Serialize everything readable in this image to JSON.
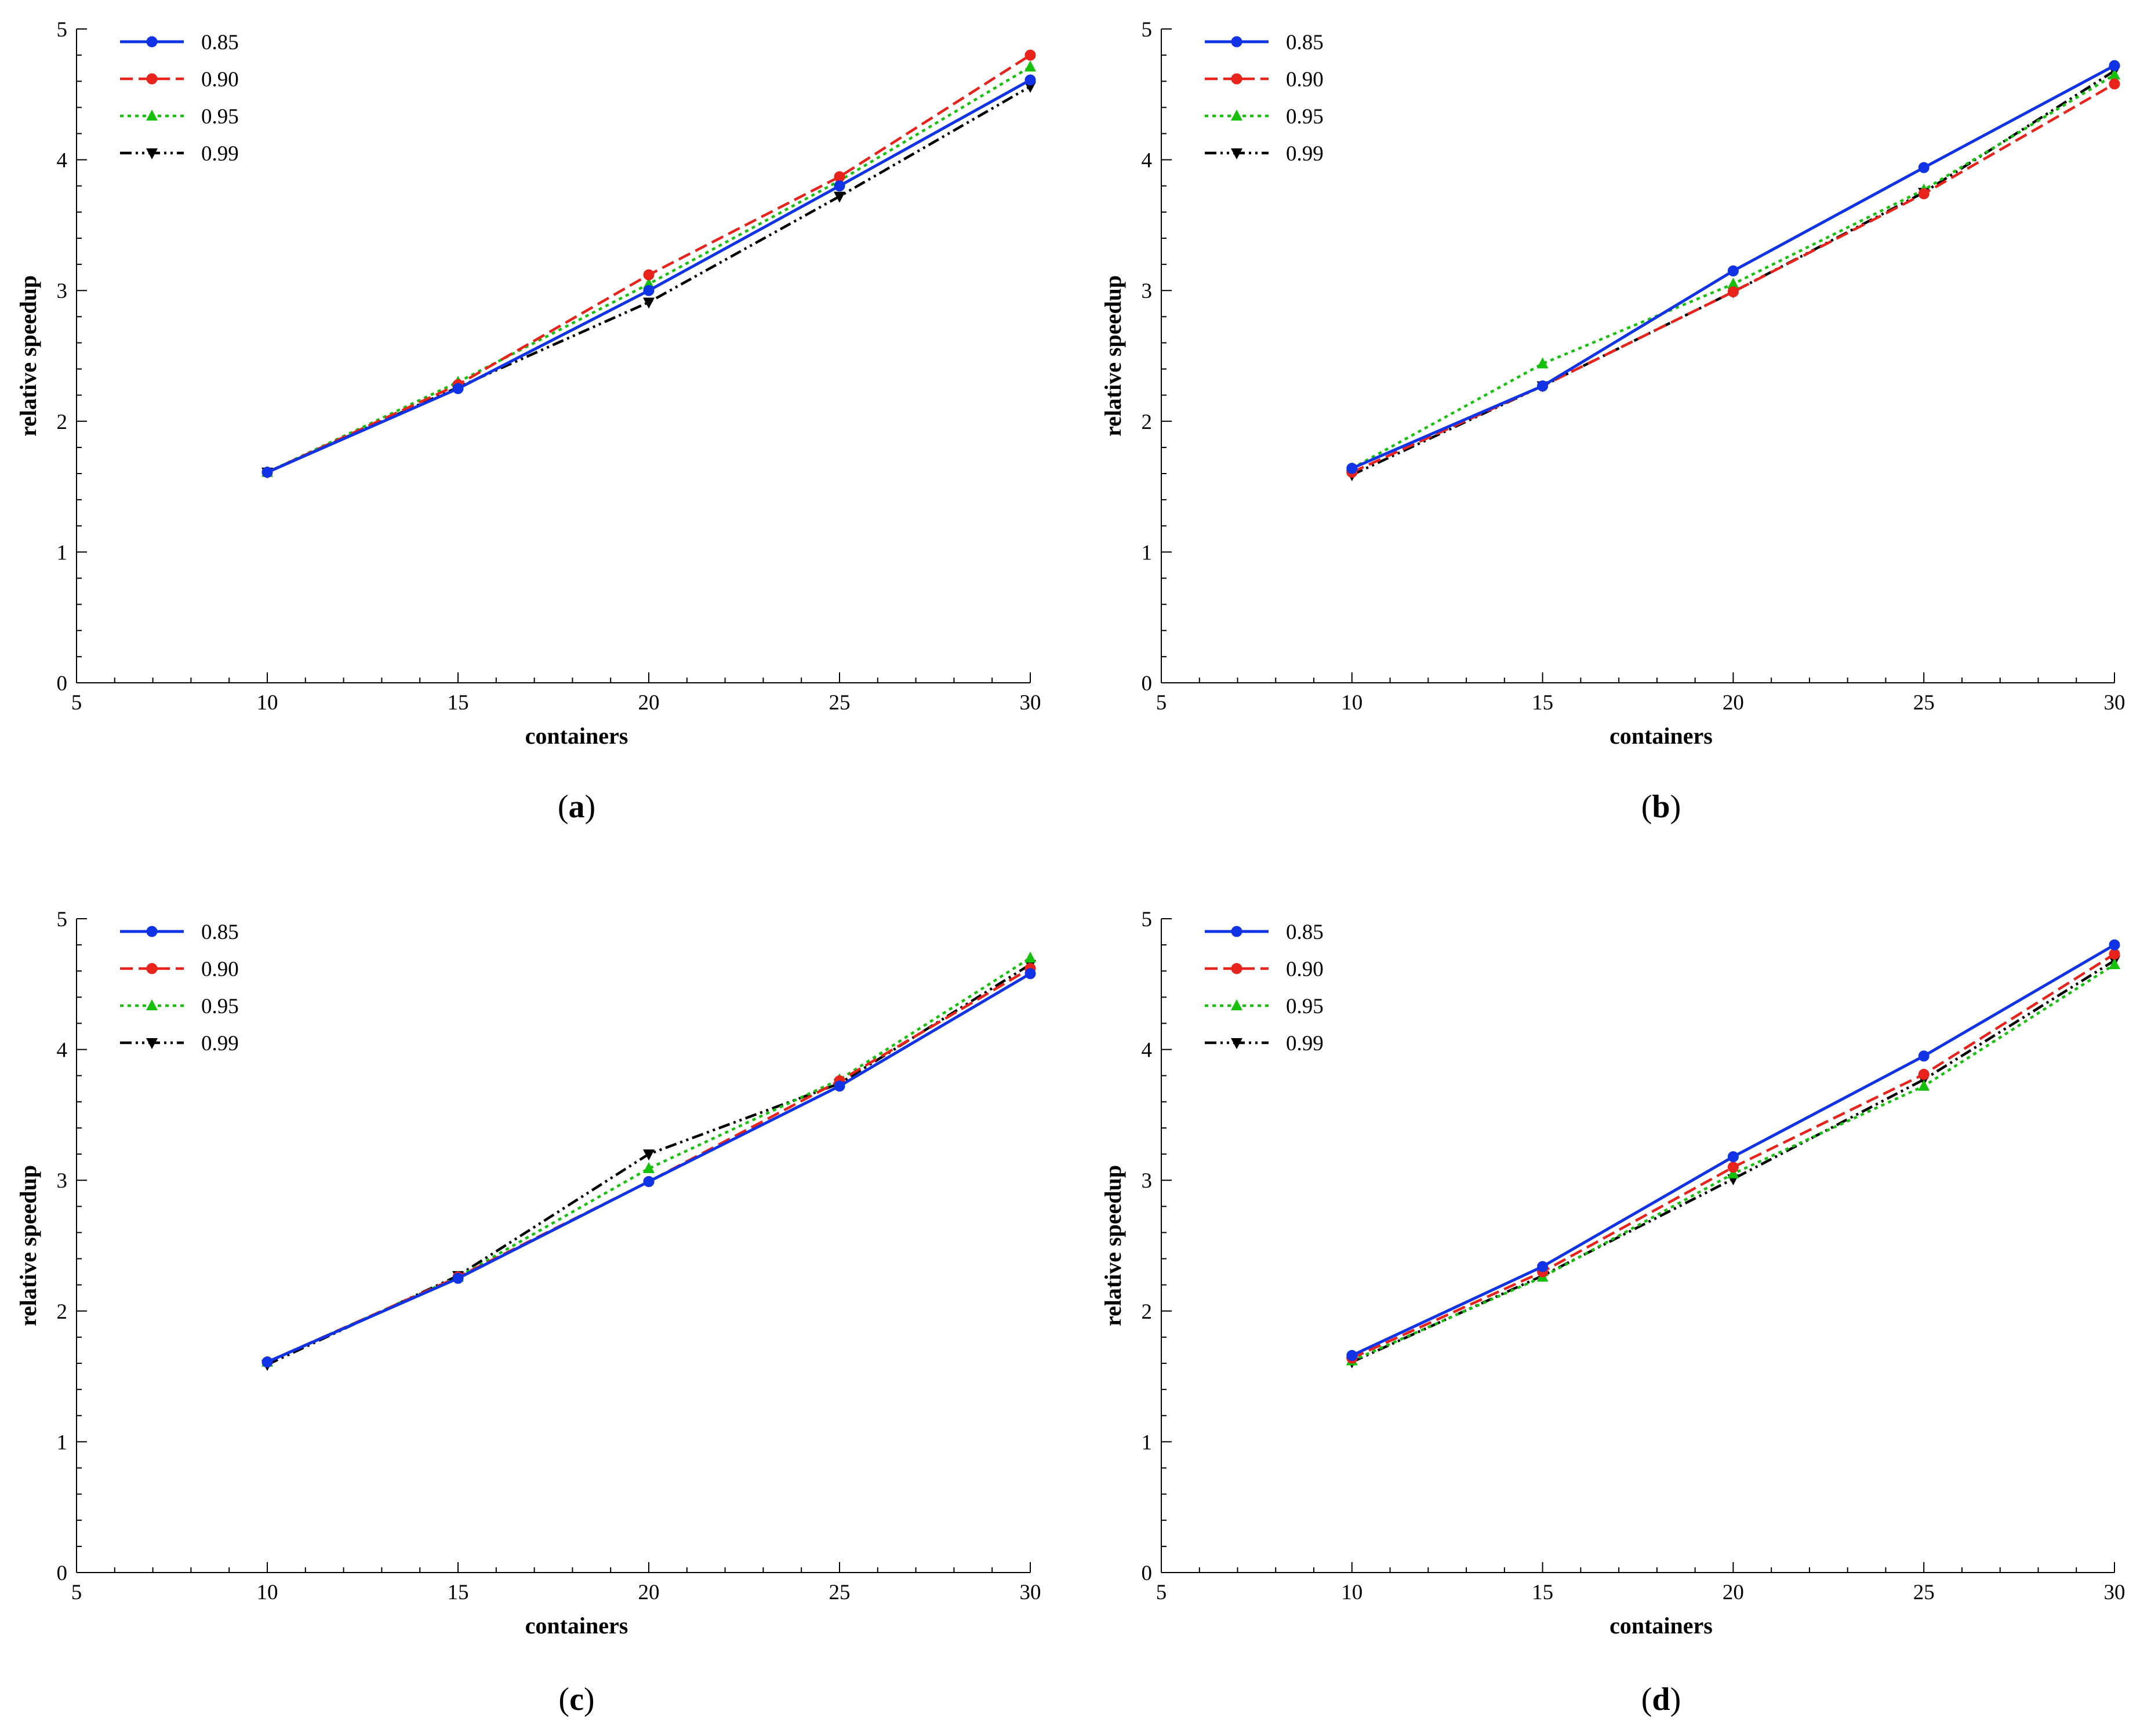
{
  "figure": {
    "style": {
      "series_colors": [
        "#1133e6",
        "#e8231b",
        "#16c10c",
        "#000000"
      ],
      "axis_color": "#000000"
    }
  },
  "chart_data": [
    {
      "type": "line",
      "panel": "a",
      "caption": "a",
      "xlabel": "containers",
      "ylabel": "relative speedup",
      "xlim": [
        5,
        30
      ],
      "ylim": [
        0,
        5
      ],
      "xticks": [
        "5",
        "10",
        "15",
        "20",
        "25",
        "30"
      ],
      "yticks": [
        "0",
        "1",
        "2",
        "3",
        "4",
        "5"
      ],
      "x": [
        10,
        15,
        20,
        25,
        30
      ],
      "legend_position": "top-left",
      "series": [
        {
          "name": "0.85",
          "color": "#1133e6",
          "dash": "solid",
          "marker": "circle",
          "values": [
            1.61,
            2.25,
            3.0,
            3.8,
            4.61
          ]
        },
        {
          "name": "0.90",
          "color": "#e8231b",
          "dash": "dashed",
          "marker": "circle",
          "values": [
            1.61,
            2.28,
            3.12,
            3.87,
            4.8
          ]
        },
        {
          "name": "0.95",
          "color": "#16c10c",
          "dash": "dotted",
          "marker": "triangle-up",
          "values": [
            1.61,
            2.3,
            3.05,
            3.84,
            4.71
          ]
        },
        {
          "name": "0.99",
          "color": "#000000",
          "dash": "dashdotdot",
          "marker": "triangle-down",
          "values": [
            1.61,
            2.26,
            2.91,
            3.72,
            4.56
          ]
        }
      ]
    },
    {
      "type": "line",
      "panel": "b",
      "caption": "b",
      "xlabel": "containers",
      "ylabel": "relative speedup",
      "xlim": [
        5,
        30
      ],
      "ylim": [
        0,
        5
      ],
      "xticks": [
        "5",
        "10",
        "15",
        "20",
        "25",
        "30"
      ],
      "yticks": [
        "0",
        "1",
        "2",
        "3",
        "4",
        "5"
      ],
      "x": [
        10,
        15,
        20,
        25,
        30
      ],
      "legend_position": "top-left",
      "series": [
        {
          "name": "0.85",
          "color": "#1133e6",
          "dash": "solid",
          "marker": "circle",
          "values": [
            1.64,
            2.27,
            3.15,
            3.94,
            4.72
          ]
        },
        {
          "name": "0.90",
          "color": "#e8231b",
          "dash": "dashed",
          "marker": "circle",
          "values": [
            1.61,
            2.27,
            2.99,
            3.74,
            4.58
          ]
        },
        {
          "name": "0.95",
          "color": "#16c10c",
          "dash": "dotted",
          "marker": "triangle-up",
          "values": [
            1.64,
            2.44,
            3.05,
            3.77,
            4.65
          ]
        },
        {
          "name": "0.99",
          "color": "#000000",
          "dash": "dashdotdot",
          "marker": "triangle-down",
          "values": [
            1.59,
            2.27,
            2.99,
            3.75,
            4.68
          ]
        }
      ]
    },
    {
      "type": "line",
      "panel": "c",
      "caption": "c",
      "xlabel": "containers",
      "ylabel": "relative speedup",
      "xlim": [
        5,
        30
      ],
      "ylim": [
        0,
        5
      ],
      "xticks": [
        "5",
        "10",
        "15",
        "20",
        "25",
        "30"
      ],
      "yticks": [
        "0",
        "1",
        "2",
        "3",
        "4",
        "5"
      ],
      "x": [
        10,
        15,
        20,
        25,
        30
      ],
      "legend_position": "top-left",
      "series": [
        {
          "name": "0.85",
          "color": "#1133e6",
          "dash": "solid",
          "marker": "circle",
          "values": [
            1.61,
            2.25,
            2.99,
            3.72,
            4.58
          ]
        },
        {
          "name": "0.90",
          "color": "#e8231b",
          "dash": "dashed",
          "marker": "circle",
          "values": [
            1.61,
            2.26,
            2.99,
            3.76,
            4.62
          ]
        },
        {
          "name": "0.95",
          "color": "#16c10c",
          "dash": "dotted",
          "marker": "triangle-up",
          "values": [
            1.61,
            2.26,
            3.09,
            3.77,
            4.7
          ]
        },
        {
          "name": "0.99",
          "color": "#000000",
          "dash": "dashdotdot",
          "marker": "triangle-down",
          "values": [
            1.59,
            2.27,
            3.2,
            3.74,
            4.65
          ]
        }
      ]
    },
    {
      "type": "line",
      "panel": "d",
      "caption": "d",
      "xlabel": "containers",
      "ylabel": "relative speedup",
      "xlim": [
        5,
        30
      ],
      "ylim": [
        0,
        5
      ],
      "xticks": [
        "5",
        "10",
        "15",
        "20",
        "25",
        "30"
      ],
      "yticks": [
        "0",
        "1",
        "2",
        "3",
        "4",
        "5"
      ],
      "x": [
        10,
        15,
        20,
        25,
        30
      ],
      "legend_position": "top-left",
      "series": [
        {
          "name": "0.85",
          "color": "#1133e6",
          "dash": "solid",
          "marker": "circle",
          "values": [
            1.66,
            2.34,
            3.18,
            3.95,
            4.8
          ]
        },
        {
          "name": "0.90",
          "color": "#e8231b",
          "dash": "dashed",
          "marker": "circle",
          "values": [
            1.64,
            2.3,
            3.1,
            3.81,
            4.73
          ]
        },
        {
          "name": "0.95",
          "color": "#16c10c",
          "dash": "dotted",
          "marker": "triangle-up",
          "values": [
            1.62,
            2.26,
            3.05,
            3.72,
            4.65
          ]
        },
        {
          "name": "0.99",
          "color": "#000000",
          "dash": "dashdotdot",
          "marker": "triangle-down",
          "values": [
            1.61,
            2.27,
            3.01,
            3.77,
            4.68
          ]
        }
      ]
    }
  ]
}
